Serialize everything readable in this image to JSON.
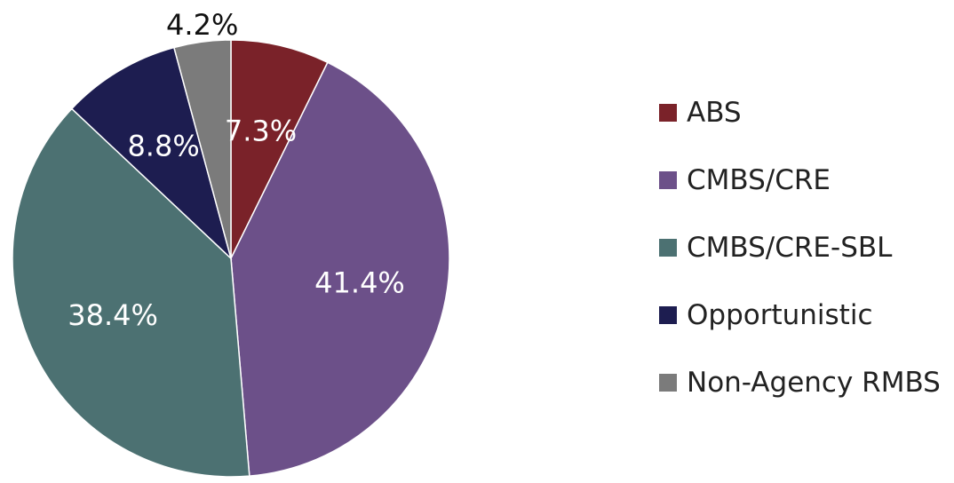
{
  "chart_data": {
    "type": "pie",
    "start_angle_deg": 0,
    "direction": "clockwise",
    "legend_position": "right",
    "slices": [
      {
        "label": "ABS",
        "value": 7.3,
        "display": "7.3%",
        "color": "#7a2229",
        "label_color": "#ffffff",
        "label_outside": false
      },
      {
        "label": "CMBS/CRE",
        "value": 41.4,
        "display": "41.4%",
        "color": "#6c5089",
        "label_color": "#ffffff",
        "label_outside": false
      },
      {
        "label": "CMBS/CRE-SBL",
        "value": 38.4,
        "display": "38.4%",
        "color": "#4c7172",
        "label_color": "#ffffff",
        "label_outside": false
      },
      {
        "label": "Opportunistic",
        "value": 8.8,
        "display": "8.8%",
        "color": "#1d1d50",
        "label_color": "#ffffff",
        "label_outside": false
      },
      {
        "label": "Non-Agency RMBS",
        "value": 4.2,
        "display": "4.2%",
        "color": "#7b7b7b",
        "label_color": "#111111",
        "label_outside": true
      }
    ]
  }
}
